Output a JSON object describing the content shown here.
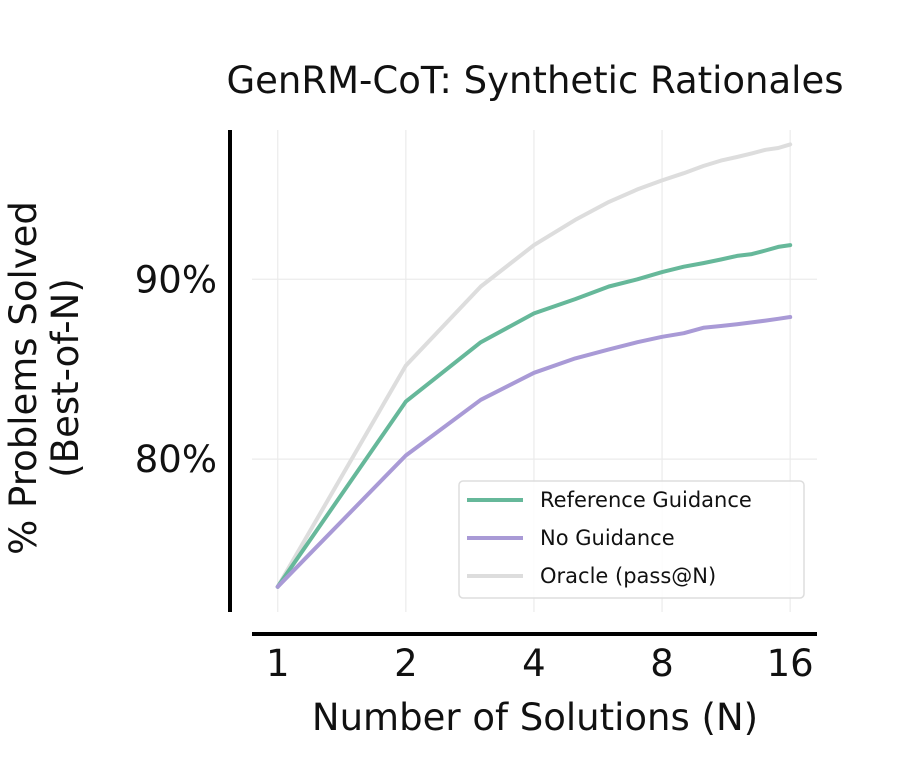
{
  "chart_data": {
    "type": "line",
    "title": "GenRM-CoT: Synthetic Rationales",
    "xlabel": "Number of Solutions (N)",
    "ylabel": "% Problems Solved\n(Best-of-N)",
    "x_scale": "log2",
    "x_ticks": [
      1,
      2,
      4,
      8,
      16
    ],
    "x_tick_labels": [
      "1",
      "2",
      "4",
      "8",
      "16"
    ],
    "y_ticks": [
      80,
      90
    ],
    "y_tick_labels": [
      "80%",
      "90%"
    ],
    "xlim": [
      0.87,
      18.5
    ],
    "ylim": [
      71.5,
      98.3
    ],
    "grid": true,
    "legend_position": "lower-right",
    "x": [
      1,
      2,
      3,
      4,
      5,
      6,
      7,
      8,
      9,
      10,
      11,
      12,
      13,
      14,
      15,
      16
    ],
    "series": [
      {
        "name": "Reference Guidance",
        "color": "#66b89a",
        "values": [
          72.9,
          83.2,
          86.5,
          88.1,
          88.9,
          89.6,
          90.0,
          90.4,
          90.7,
          90.9,
          91.1,
          91.3,
          91.4,
          91.6,
          91.8,
          91.9
        ]
      },
      {
        "name": "No Guidance",
        "color": "#a99ad6",
        "values": [
          72.9,
          80.2,
          83.3,
          84.8,
          85.6,
          86.1,
          86.5,
          86.8,
          87.0,
          87.3,
          87.4,
          87.5,
          87.6,
          87.7,
          87.8,
          87.9
        ]
      },
      {
        "name": "Oracle (pass@N)",
        "color": "#dddddd",
        "values": [
          72.9,
          85.2,
          89.6,
          91.9,
          93.3,
          94.3,
          95.0,
          95.5,
          95.9,
          96.3,
          96.6,
          96.8,
          97.0,
          97.2,
          97.3,
          97.5
        ]
      }
    ]
  }
}
